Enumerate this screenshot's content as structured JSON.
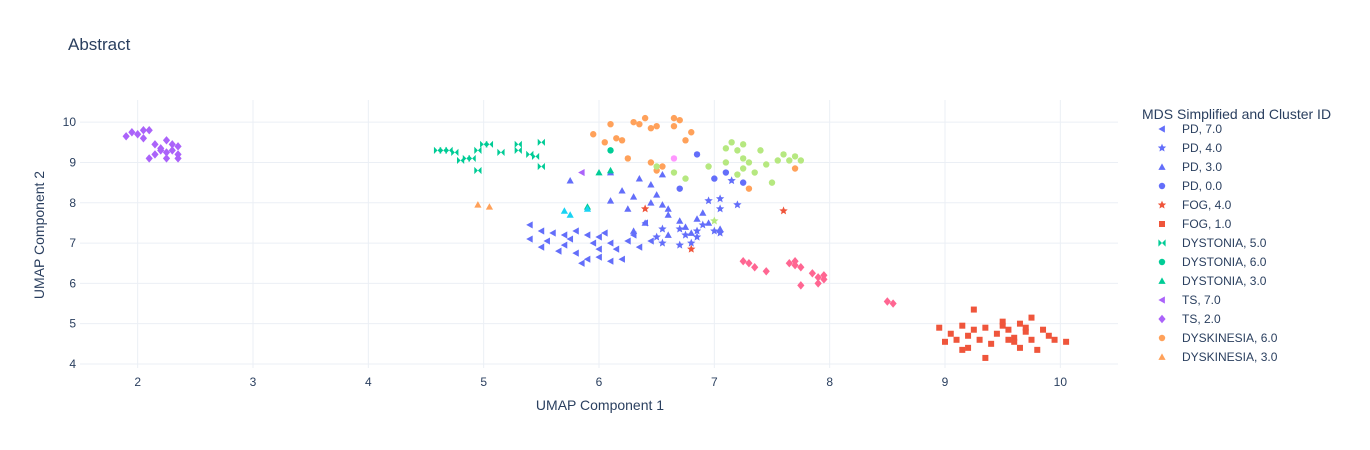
{
  "chart_data": {
    "type": "scatter",
    "title": "Abstract",
    "xlabel": "UMAP Component 1",
    "ylabel": "UMAP Component 2",
    "xlim": [
      1.5,
      10.5
    ],
    "ylim": [
      3.9,
      10.55
    ],
    "xticks": [
      2,
      3,
      4,
      5,
      6,
      7,
      8,
      9,
      10
    ],
    "yticks": [
      4,
      5,
      6,
      7,
      8,
      9,
      10
    ],
    "grid": true,
    "legend": {
      "title": "MDS Simplified and Cluster ID",
      "placement": "right"
    },
    "series": [
      {
        "name": "PD, 7.0",
        "symbol": "triangle-left",
        "color": "#636efa",
        "points": [
          [
            5.4,
            7.45
          ],
          [
            5.5,
            7.3
          ],
          [
            5.6,
            7.25
          ],
          [
            5.4,
            7.1
          ],
          [
            5.55,
            7.05
          ],
          [
            5.7,
            6.95
          ],
          [
            5.5,
            6.9
          ],
          [
            5.65,
            6.8
          ],
          [
            5.8,
            6.75
          ],
          [
            5.75,
            7.1
          ],
          [
            5.9,
            7.2
          ],
          [
            5.95,
            7.0
          ],
          [
            6.0,
            6.85
          ],
          [
            6.05,
            7.25
          ],
          [
            6.1,
            7.0
          ],
          [
            6.0,
            6.65
          ],
          [
            6.1,
            6.55
          ],
          [
            6.2,
            6.6
          ],
          [
            5.9,
            6.6
          ],
          [
            5.85,
            6.5
          ],
          [
            6.15,
            6.85
          ],
          [
            6.25,
            7.05
          ],
          [
            6.3,
            7.2
          ],
          [
            6.35,
            6.9
          ],
          [
            5.8,
            7.3
          ],
          [
            5.7,
            7.2
          ],
          [
            6.4,
            7.5
          ],
          [
            6.45,
            7.05
          ],
          [
            6.0,
            7.15
          ]
        ]
      },
      {
        "name": "PD, 4.0",
        "symbol": "star",
        "color": "#636efa",
        "points": [
          [
            6.5,
            7.15
          ],
          [
            6.55,
            7.0
          ],
          [
            6.7,
            7.35
          ],
          [
            6.75,
            7.2
          ],
          [
            6.7,
            6.95
          ],
          [
            6.8,
            7.0
          ],
          [
            6.85,
            7.15
          ],
          [
            6.9,
            7.45
          ],
          [
            7.0,
            7.3
          ],
          [
            7.05,
            7.25
          ],
          [
            7.05,
            7.85
          ],
          [
            6.95,
            8.05
          ],
          [
            7.05,
            8.1
          ],
          [
            7.2,
            7.95
          ],
          [
            6.85,
            7.3
          ],
          [
            7.15,
            8.55
          ],
          [
            6.55,
            7.35
          ]
        ]
      },
      {
        "name": "PD, 3.0",
        "symbol": "triangle-up",
        "color": "#636efa",
        "points": [
          [
            5.75,
            8.55
          ],
          [
            6.1,
            8.05
          ],
          [
            6.2,
            8.3
          ],
          [
            6.3,
            8.15
          ],
          [
            6.35,
            8.6
          ],
          [
            6.45,
            8.45
          ],
          [
            6.5,
            8.2
          ],
          [
            6.55,
            7.95
          ],
          [
            6.6,
            7.7
          ],
          [
            6.7,
            7.55
          ],
          [
            6.75,
            7.4
          ],
          [
            6.8,
            7.25
          ],
          [
            6.85,
            7.6
          ],
          [
            6.9,
            7.75
          ],
          [
            6.95,
            7.5
          ],
          [
            7.05,
            7.35
          ],
          [
            6.6,
            7.85
          ],
          [
            6.25,
            7.85
          ],
          [
            6.45,
            8.0
          ],
          [
            6.55,
            8.7
          ],
          [
            6.4,
            7.5
          ],
          [
            6.3,
            7.3
          ],
          [
            6.6,
            7.2
          ],
          [
            6.1,
            8.75
          ]
        ]
      },
      {
        "name": "PD, 0.0",
        "symbol": "circle",
        "color": "#636efa",
        "points": [
          [
            6.85,
            9.2
          ],
          [
            6.7,
            8.35
          ],
          [
            7.0,
            8.6
          ],
          [
            7.1,
            8.75
          ],
          [
            7.25,
            8.5
          ]
        ]
      },
      {
        "name": "FOG, 4.0",
        "symbol": "star",
        "color": "#ef553b",
        "points": [
          [
            7.6,
            7.8
          ],
          [
            6.8,
            6.85
          ],
          [
            6.4,
            7.85
          ]
        ]
      },
      {
        "name": "FOG, 1.0",
        "symbol": "square",
        "color": "#ef553b",
        "points": [
          [
            8.95,
            4.9
          ],
          [
            9.05,
            4.75
          ],
          [
            9.1,
            4.6
          ],
          [
            9.15,
            4.95
          ],
          [
            9.2,
            4.7
          ],
          [
            9.25,
            4.85
          ],
          [
            9.3,
            4.6
          ],
          [
            9.25,
            5.35
          ],
          [
            9.35,
            4.9
          ],
          [
            9.4,
            4.5
          ],
          [
            9.45,
            4.75
          ],
          [
            9.5,
            5.05
          ],
          [
            9.55,
            4.85
          ],
          [
            9.6,
            4.65
          ],
          [
            9.65,
            5.0
          ],
          [
            9.7,
            4.8
          ],
          [
            9.75,
            4.6
          ],
          [
            9.8,
            4.35
          ],
          [
            9.65,
            4.4
          ],
          [
            9.7,
            4.9
          ],
          [
            9.75,
            5.15
          ],
          [
            9.55,
            4.6
          ],
          [
            9.2,
            4.4
          ],
          [
            9.15,
            4.35
          ],
          [
            9.0,
            4.55
          ],
          [
            9.35,
            4.15
          ],
          [
            9.95,
            4.6
          ],
          [
            10.05,
            4.55
          ],
          [
            9.5,
            4.95
          ],
          [
            9.6,
            4.55
          ],
          [
            9.85,
            4.85
          ],
          [
            9.9,
            4.7
          ]
        ]
      },
      {
        "name": "DYSTONIA, 5.0",
        "symbol": "bowtie",
        "color": "#00cc96",
        "points": [
          [
            4.6,
            9.3
          ],
          [
            4.65,
            9.3
          ],
          [
            4.7,
            9.3
          ],
          [
            4.75,
            9.25
          ],
          [
            4.85,
            9.1
          ],
          [
            4.9,
            9.1
          ],
          [
            4.95,
            9.3
          ],
          [
            5.0,
            9.45
          ],
          [
            5.05,
            9.45
          ],
          [
            5.15,
            9.25
          ],
          [
            5.3,
            9.45
          ],
          [
            5.3,
            9.3
          ],
          [
            5.4,
            9.2
          ],
          [
            5.5,
            9.5
          ],
          [
            5.45,
            9.15
          ],
          [
            5.5,
            8.9
          ],
          [
            4.95,
            8.8
          ],
          [
            4.8,
            9.05
          ]
        ]
      },
      {
        "name": "DYSTONIA, 6.0",
        "symbol": "circle",
        "color": "#00cc96",
        "points": [
          [
            6.1,
            9.3
          ]
        ]
      },
      {
        "name": "DYSTONIA, 3.0",
        "symbol": "triangle-up",
        "color": "#00cc96",
        "points": [
          [
            6.0,
            8.75
          ],
          [
            5.9,
            7.9
          ],
          [
            6.1,
            8.8
          ]
        ]
      },
      {
        "name": "TS, 7.0",
        "symbol": "triangle-left",
        "color": "#ab63fa",
        "points": [
          [
            5.85,
            8.75
          ]
        ]
      },
      {
        "name": "TS, 2.0",
        "symbol": "diamond",
        "color": "#ab63fa",
        "points": [
          [
            1.9,
            9.65
          ],
          [
            1.95,
            9.75
          ],
          [
            2.0,
            9.7
          ],
          [
            2.05,
            9.8
          ],
          [
            2.1,
            9.8
          ],
          [
            2.05,
            9.6
          ],
          [
            2.15,
            9.45
          ],
          [
            2.2,
            9.35
          ],
          [
            2.25,
            9.25
          ],
          [
            2.3,
            9.3
          ],
          [
            2.35,
            9.4
          ],
          [
            2.1,
            9.1
          ],
          [
            2.15,
            9.2
          ],
          [
            2.25,
            9.1
          ],
          [
            2.35,
            9.1
          ],
          [
            2.25,
            9.55
          ],
          [
            2.3,
            9.45
          ],
          [
            2.2,
            9.3
          ],
          [
            2.35,
            9.2
          ]
        ]
      },
      {
        "name": "DYSKINESIA, 6.0",
        "symbol": "circle",
        "color": "#ffa15a",
        "points": [
          [
            5.95,
            9.7
          ],
          [
            6.05,
            9.5
          ],
          [
            6.1,
            9.95
          ],
          [
            6.15,
            9.6
          ],
          [
            6.2,
            9.55
          ],
          [
            6.25,
            9.1
          ],
          [
            6.3,
            10.0
          ],
          [
            6.35,
            9.95
          ],
          [
            6.4,
            10.1
          ],
          [
            6.45,
            9.85
          ],
          [
            6.5,
            9.9
          ],
          [
            6.55,
            8.9
          ],
          [
            6.5,
            8.8
          ],
          [
            6.65,
            9.9
          ],
          [
            6.7,
            10.05
          ],
          [
            6.75,
            9.55
          ],
          [
            6.8,
            9.75
          ],
          [
            6.65,
            10.1
          ],
          [
            6.45,
            9.0
          ],
          [
            7.3,
            8.35
          ],
          [
            7.7,
            8.85
          ]
        ]
      },
      {
        "name": "DYSKINESIA, 3.0",
        "symbol": "triangle-up",
        "color": "#ffa15a",
        "points": [
          [
            4.95,
            7.95
          ],
          [
            5.05,
            7.9
          ]
        ]
      },
      {
        "name": "magenta",
        "symbol": "diamond",
        "color": "#ff6692",
        "showlegend": false,
        "points": [
          [
            7.25,
            6.55
          ],
          [
            7.3,
            6.5
          ],
          [
            7.35,
            6.4
          ],
          [
            7.45,
            6.3
          ],
          [
            7.65,
            6.5
          ],
          [
            7.7,
            6.45
          ],
          [
            7.75,
            6.4
          ],
          [
            7.7,
            6.55
          ],
          [
            7.85,
            6.25
          ],
          [
            7.9,
            6.15
          ],
          [
            7.95,
            6.1
          ],
          [
            7.95,
            6.2
          ],
          [
            7.9,
            6.0
          ],
          [
            7.75,
            5.95
          ],
          [
            8.5,
            5.55
          ],
          [
            8.55,
            5.5
          ]
        ]
      },
      {
        "name": "green",
        "symbol": "circle",
        "color": "#b6e880",
        "showlegend": false,
        "points": [
          [
            6.5,
            8.9
          ],
          [
            6.65,
            8.75
          ],
          [
            6.75,
            8.6
          ],
          [
            6.95,
            8.9
          ],
          [
            7.1,
            9.0
          ],
          [
            7.15,
            9.5
          ],
          [
            7.2,
            9.3
          ],
          [
            7.25,
            9.45
          ],
          [
            7.25,
            9.1
          ],
          [
            7.3,
            9.0
          ],
          [
            7.35,
            8.75
          ],
          [
            7.4,
            9.3
          ],
          [
            7.45,
            8.95
          ],
          [
            7.5,
            8.5
          ],
          [
            7.55,
            9.05
          ],
          [
            7.6,
            9.2
          ],
          [
            7.65,
            9.05
          ],
          [
            7.7,
            9.15
          ],
          [
            7.75,
            9.05
          ],
          [
            7.2,
            8.7
          ],
          [
            7.25,
            8.85
          ],
          [
            7.1,
            9.35
          ]
        ]
      },
      {
        "name": "pink",
        "symbol": "circle",
        "color": "#ff97ff",
        "showlegend": false,
        "points": [
          [
            6.65,
            9.1
          ]
        ]
      },
      {
        "name": "cyan",
        "symbol": "triangle-up",
        "color": "#19d3f3",
        "showlegend": false,
        "points": [
          [
            5.7,
            7.8
          ],
          [
            5.75,
            7.7
          ],
          [
            5.9,
            7.85
          ]
        ]
      },
      {
        "name": "lime",
        "symbol": "star",
        "color": "#b6e880",
        "showlegend": false,
        "points": [
          [
            7.0,
            7.55
          ]
        ]
      }
    ]
  }
}
